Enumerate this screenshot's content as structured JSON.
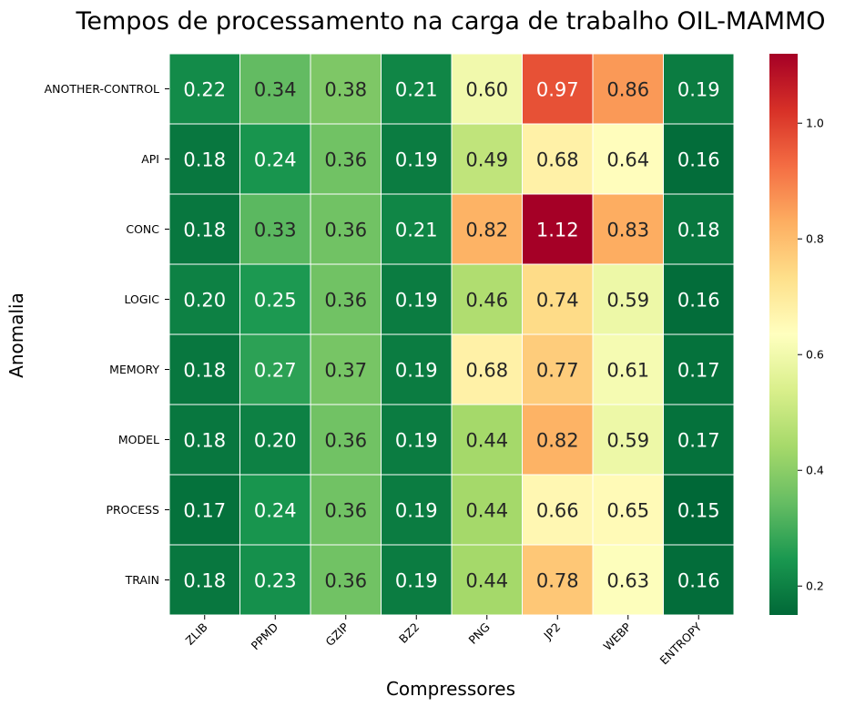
{
  "chart_data": {
    "type": "heatmap",
    "title": "Tempos de processamento na carga de trabalho OIL-MAMMO",
    "xlabel": "Compressores",
    "ylabel": "Anomalia",
    "columns": [
      "ZLIB",
      "PPMD",
      "GZIP",
      "BZ2",
      "PNG",
      "JP2",
      "WEBP",
      "ENTROPY"
    ],
    "rows": [
      "ANOTHER-CONTROL",
      "API",
      "CONC",
      "LOGIC",
      "MEMORY",
      "MODEL",
      "PROCESS",
      "TRAIN"
    ],
    "values": [
      [
        0.22,
        0.34,
        0.38,
        0.21,
        0.6,
        0.97,
        0.86,
        0.19
      ],
      [
        0.18,
        0.24,
        0.36,
        0.19,
        0.49,
        0.68,
        0.64,
        0.16
      ],
      [
        0.18,
        0.33,
        0.36,
        0.21,
        0.82,
        1.12,
        0.83,
        0.18
      ],
      [
        0.2,
        0.25,
        0.36,
        0.19,
        0.46,
        0.74,
        0.59,
        0.16
      ],
      [
        0.18,
        0.27,
        0.37,
        0.19,
        0.68,
        0.77,
        0.61,
        0.17
      ],
      [
        0.18,
        0.2,
        0.36,
        0.19,
        0.44,
        0.82,
        0.59,
        0.17
      ],
      [
        0.17,
        0.24,
        0.36,
        0.19,
        0.44,
        0.66,
        0.65,
        0.15
      ],
      [
        0.18,
        0.23,
        0.36,
        0.19,
        0.44,
        0.78,
        0.63,
        0.16
      ]
    ],
    "colormap": "RdYlGn_r",
    "color_range": [
      0.15,
      1.12
    ],
    "colorbar_ticks": [
      "0.2",
      "0.4",
      "0.6",
      "0.8",
      "1.0"
    ],
    "gridlines": "white"
  }
}
